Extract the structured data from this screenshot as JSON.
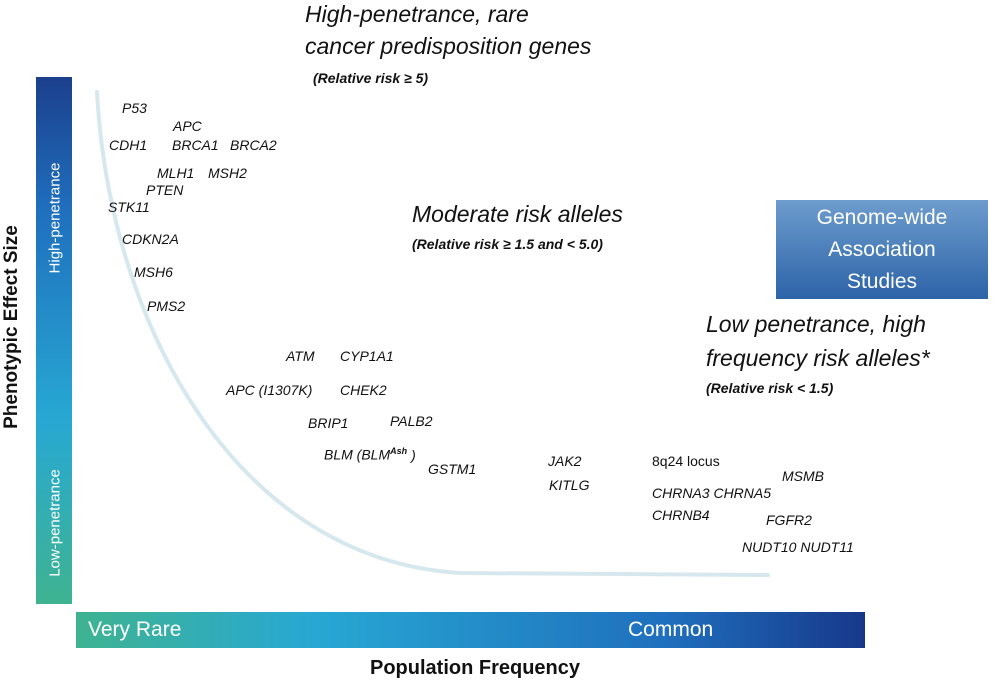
{
  "axes": {
    "y_title": "Phenotypic Effect Size",
    "y_high": "High-penetrance",
    "y_low": "Low-penetrance",
    "x_title": "Population Frequency",
    "x_left": "Very Rare",
    "x_right": "Common"
  },
  "headings": {
    "high_line1": "High-penetrance,  rare",
    "high_line2": "cancer predisposition genes",
    "high_rr": "(Relative risk ≥ 5)",
    "moderate": "Moderate risk alleles",
    "moderate_rr": "(Relative risk  ≥  1.5 and < 5.0)",
    "low_line1": "Low penetrance, high",
    "low_line2": "frequency risk alleles*",
    "low_rr": "(Relative risk < 1.5)"
  },
  "gwas_box": {
    "line1": "Genome-wide",
    "line2": "Association",
    "line3": "Studies"
  },
  "genes_high": [
    "P53",
    "APC",
    "CDH1",
    "BRCA1",
    "BRCA2",
    "MLH1",
    "MSH2",
    "PTEN",
    "STK11",
    "CDKN2A",
    "MSH6",
    "PMS2"
  ],
  "genes_moderate": [
    "ATM",
    "CYP1A1",
    "APC (I1307K)",
    "CHEK2",
    "BRIP1",
    "PALB2",
    "BLM (BLM",
    "Ash",
    ")",
    "GSTM1"
  ],
  "genes_low": [
    "JAK2",
    "KITLG",
    "8q24 locus",
    "MSMB",
    "CHRNA3 CHRNA5",
    "CHRNB4",
    "FGFR2",
    "NUDT10 NUDT11"
  ],
  "colors": {
    "bar_dark": "#1b3f8c",
    "bar_light": "#3fb391",
    "curve": "#d6e8ee",
    "gwas_box": "#2d64a8"
  }
}
